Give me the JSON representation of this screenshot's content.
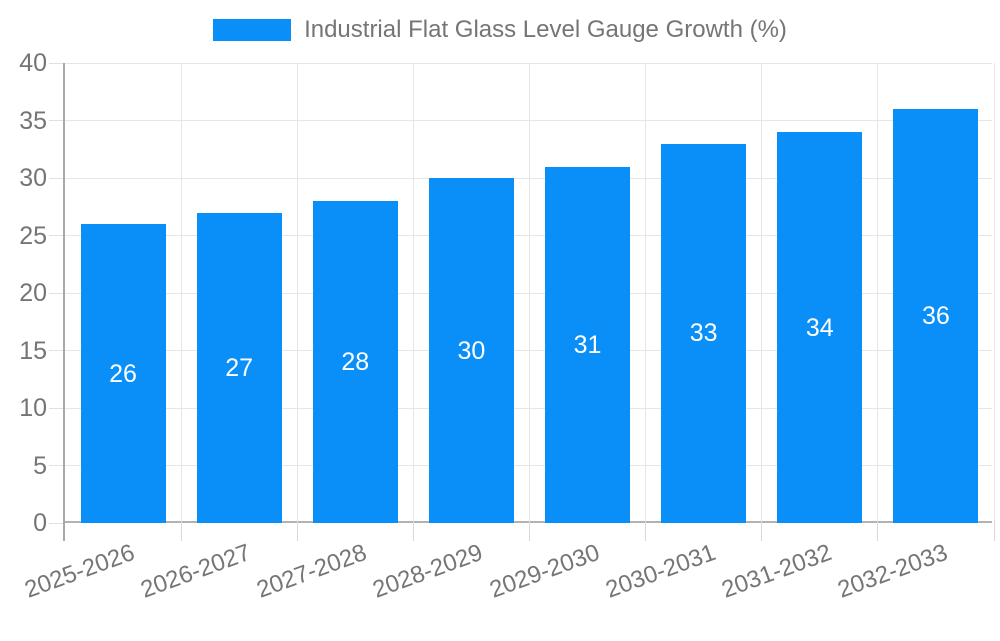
{
  "chart_data": {
    "type": "bar",
    "title": "",
    "series_name": "Industrial Flat Glass Level Gauge Growth (%)",
    "categories": [
      "2025-2026",
      "2026-2027",
      "2027-2028",
      "2028-2029",
      "2029-2030",
      "2030-2031",
      "2031-2032",
      "2032-2033"
    ],
    "values": [
      26,
      27,
      28,
      30,
      31,
      33,
      34,
      36
    ],
    "value_labels": [
      "26",
      "27",
      "28",
      "30",
      "31",
      "33",
      "34",
      "36"
    ],
    "xlabel": "",
    "ylabel": "",
    "ylim": [
      0,
      40
    ],
    "yticks": [
      0,
      5,
      10,
      15,
      20,
      25,
      30,
      35,
      40
    ],
    "grid": true,
    "legend_position": "top",
    "bar_color": "#0a8ff9",
    "value_label_color": "#ffffff",
    "tick_label_color": "#757575",
    "grid_color": "#e6e6e6",
    "axis_color": "#a8a8a8",
    "x_label_rotation_deg": -20
  }
}
